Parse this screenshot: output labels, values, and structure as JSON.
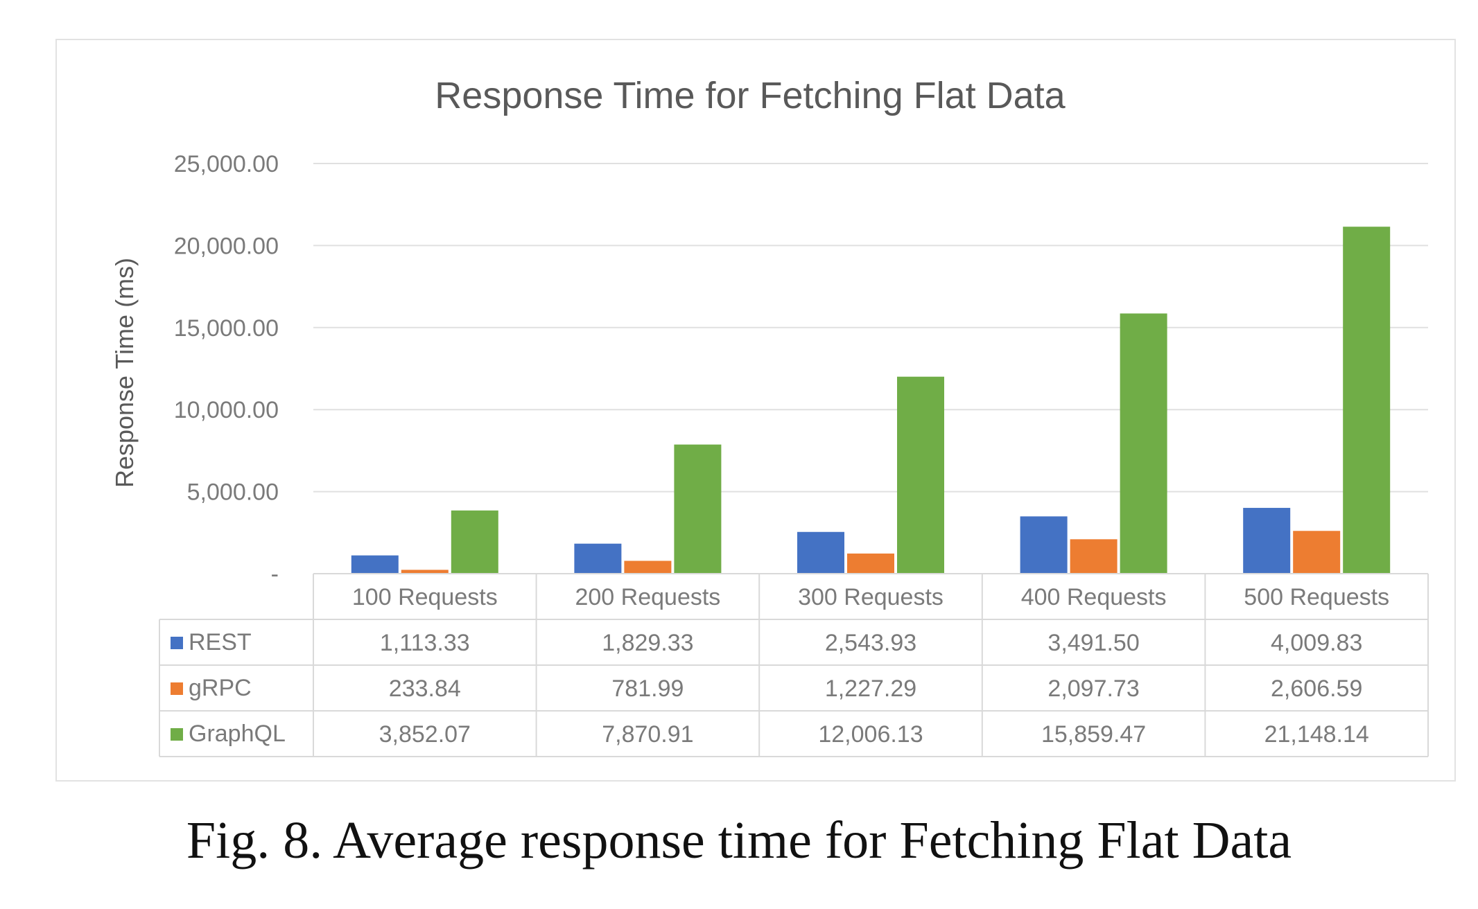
{
  "caption": "Fig. 8. Average response time for Fetching Flat Data",
  "chart_data": {
    "type": "bar",
    "title": "Response Time for Fetching Flat Data",
    "ylabel": "Response Time (ms)",
    "xlabel": "",
    "ylim": [
      0,
      25000
    ],
    "yticks": [
      0,
      5000,
      10000,
      15000,
      20000,
      25000
    ],
    "ytick_labels": [
      "-",
      "5,000.00",
      "10,000.00",
      "15,000.00",
      "20,000.00",
      "25,000.00"
    ],
    "grid": true,
    "legend": "data-table",
    "categories": [
      "100 Requests",
      "200 Requests",
      "300 Requests",
      "400 Requests",
      "500 Requests"
    ],
    "series": [
      {
        "name": "REST",
        "color": "#4472c4",
        "values": [
          1113.33,
          1829.33,
          2543.93,
          3491.5,
          4009.83
        ],
        "labels": [
          "1,113.33",
          "1,829.33",
          "2,543.93",
          "3,491.50",
          "4,009.83"
        ]
      },
      {
        "name": "gRPC",
        "color": "#ed7d31",
        "values": [
          233.84,
          781.99,
          1227.29,
          2097.73,
          2606.59
        ],
        "labels": [
          "233.84",
          "781.99",
          "1,227.29",
          "2,097.73",
          "2,606.59"
        ]
      },
      {
        "name": "GraphQL",
        "color": "#70ad47",
        "values": [
          3852.07,
          7870.91,
          12006.13,
          15859.47,
          21148.14
        ],
        "labels": [
          "3,852.07",
          "7,870.91",
          "12,006.13",
          "15,859.47",
          "21,148.14"
        ]
      }
    ]
  }
}
